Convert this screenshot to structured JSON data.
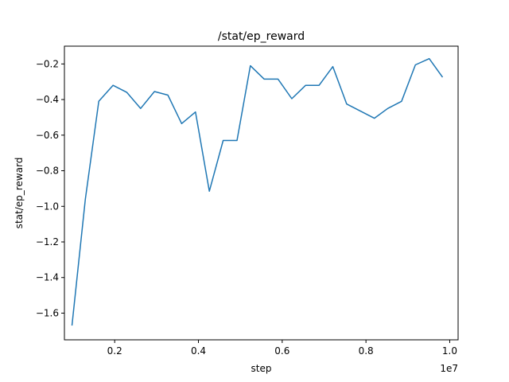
{
  "chart_data": {
    "type": "line",
    "title": "/stat/ep_reward",
    "xlabel": "step",
    "ylabel": "stat/ep_reward",
    "x_offset_label": "1e7",
    "xlim": [
      0.08,
      1.02
    ],
    "ylim": [
      -1.75,
      -0.1
    ],
    "x_ticks": [
      0.2,
      0.4,
      0.6,
      0.8,
      1.0
    ],
    "x_tick_labels": [
      "0.2",
      "0.4",
      "0.6",
      "0.8",
      "1.0"
    ],
    "y_ticks": [
      -1.6,
      -1.4,
      -1.2,
      -1.0,
      -0.8,
      -0.6,
      -0.4,
      -0.2
    ],
    "y_tick_labels": [
      "−1.6",
      "−1.4",
      "−1.2",
      "−1.0",
      "−0.8",
      "−0.6",
      "−0.4",
      "−0.2"
    ],
    "grid": false,
    "line_color": "#1f77b4",
    "series": [
      {
        "x": [
          0.098,
          0.13,
          0.162,
          0.196,
          0.229,
          0.262,
          0.295,
          0.327,
          0.36,
          0.393,
          0.426,
          0.459,
          0.492,
          0.524,
          0.557,
          0.59,
          0.623,
          0.656,
          0.688,
          0.721,
          0.754,
          0.82,
          0.852,
          0.885,
          0.918,
          0.951,
          0.983
        ],
        "y": [
          -1.67,
          -0.96,
          -0.41,
          -0.32,
          -0.36,
          -0.45,
          -0.355,
          -0.375,
          -0.535,
          -0.47,
          -0.915,
          -0.63,
          -0.63,
          -0.21,
          -0.285,
          -0.285,
          -0.395,
          -0.32,
          -0.32,
          -0.215,
          -0.425,
          -0.505,
          -0.45,
          -0.41,
          -0.205,
          -0.17,
          -0.275
        ]
      }
    ]
  }
}
